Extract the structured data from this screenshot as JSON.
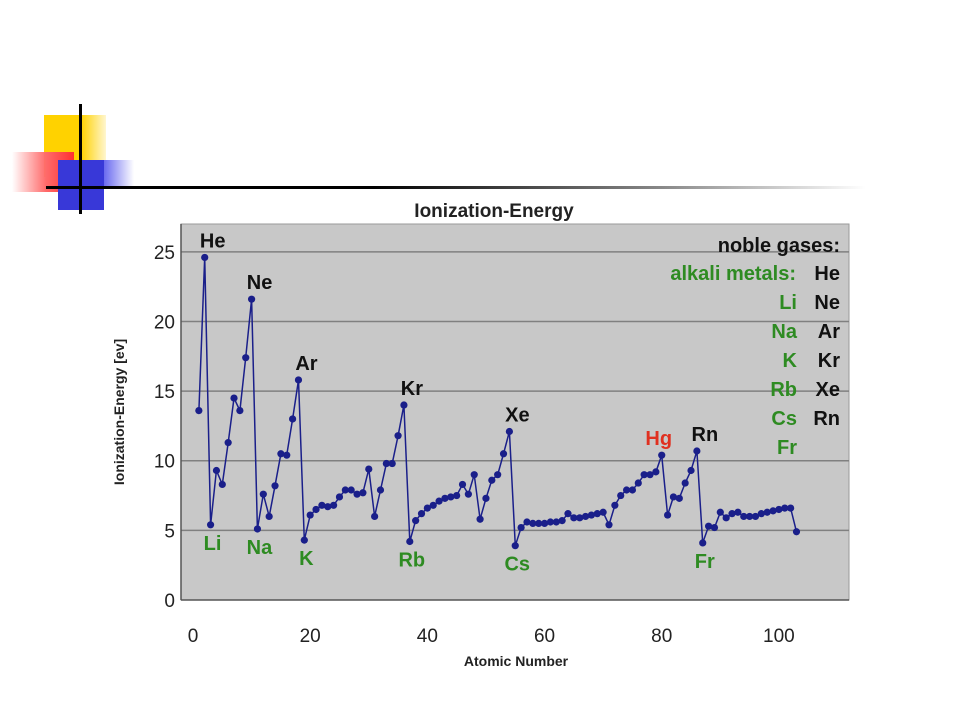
{
  "chart_data": {
    "type": "line",
    "title": "Ionization-Energy",
    "xlabel": "Atomic Number",
    "ylabel": "Ionization-Energy [ev]",
    "xlim": [
      0,
      110
    ],
    "ylim": [
      0,
      27
    ],
    "xticks": [
      0,
      20,
      40,
      60,
      80,
      100
    ],
    "yticks": [
      0,
      5,
      10,
      15,
      20,
      25
    ],
    "grid": "horizontal",
    "colors": {
      "plot_bg": "#c8c8c8",
      "line": "#1a1f8a",
      "noble": "#111111",
      "alkali": "#2e8b22",
      "highlight": "#e03020",
      "grid": "#808080"
    },
    "series": [
      {
        "x": [
          1,
          2,
          3,
          4,
          5,
          6,
          7,
          8,
          9,
          10,
          11,
          12,
          13,
          14,
          15,
          16,
          17,
          18,
          19,
          20,
          21,
          22,
          23,
          24,
          25,
          26,
          27,
          28,
          29,
          30,
          31,
          32,
          33,
          34,
          35,
          36,
          37,
          38,
          39,
          40,
          41,
          42,
          43,
          44,
          45,
          46,
          47,
          48,
          49,
          50,
          51,
          52,
          53,
          54,
          55,
          56,
          57,
          58,
          59,
          60,
          61,
          62,
          63,
          64,
          65,
          66,
          67,
          68,
          69,
          70,
          71,
          72,
          73,
          74,
          75,
          76,
          77,
          78,
          79,
          80,
          81,
          82,
          83,
          84,
          85,
          86,
          87,
          88,
          89,
          90,
          91,
          92,
          93,
          94,
          95,
          96,
          97,
          98,
          99,
          100,
          101,
          102,
          103
        ],
        "values": [
          13.6,
          24.6,
          5.4,
          9.3,
          8.3,
          11.3,
          14.5,
          13.6,
          17.4,
          21.6,
          5.1,
          7.6,
          6.0,
          8.2,
          10.5,
          10.4,
          13.0,
          15.8,
          4.3,
          6.1,
          6.5,
          6.8,
          6.7,
          6.8,
          7.4,
          7.9,
          7.9,
          7.6,
          7.7,
          9.4,
          6.0,
          7.9,
          9.8,
          9.8,
          11.8,
          14.0,
          4.2,
          5.7,
          6.2,
          6.6,
          6.8,
          7.1,
          7.3,
          7.4,
          7.5,
          8.3,
          7.6,
          9.0,
          5.8,
          7.3,
          8.6,
          9.0,
          10.5,
          12.1,
          3.9,
          5.2,
          5.6,
          5.5,
          5.5,
          5.5,
          5.6,
          5.6,
          5.7,
          6.2,
          5.9,
          5.9,
          6.0,
          6.1,
          6.2,
          6.3,
          5.4,
          6.8,
          7.5,
          7.9,
          7.9,
          8.4,
          9.0,
          9.0,
          9.2,
          10.4,
          6.1,
          7.4,
          7.3,
          8.4,
          9.3,
          10.7,
          4.1,
          5.3,
          5.2,
          6.3,
          5.9,
          6.2,
          6.3,
          6.0,
          6.0,
          6.0,
          6.2,
          6.3,
          6.4,
          6.5,
          6.6,
          6.6,
          4.9
        ]
      }
    ],
    "annotations": [
      {
        "text": "He",
        "x": 2,
        "y": 24.6,
        "group": "noble"
      },
      {
        "text": "Ne",
        "x": 10,
        "y": 21.6,
        "group": "noble"
      },
      {
        "text": "Ar",
        "x": 18,
        "y": 15.8,
        "group": "noble"
      },
      {
        "text": "Kr",
        "x": 36,
        "y": 14.0,
        "group": "noble"
      },
      {
        "text": "Xe",
        "x": 54,
        "y": 12.1,
        "group": "noble"
      },
      {
        "text": "Rn",
        "x": 86,
        "y": 10.7,
        "group": "noble"
      },
      {
        "text": "Hg",
        "x": 80,
        "y": 10.4,
        "group": "highlight"
      },
      {
        "text": "Li",
        "x": 3,
        "y": 5.4,
        "group": "alkali"
      },
      {
        "text": "Na",
        "x": 11,
        "y": 5.1,
        "group": "alkali"
      },
      {
        "text": "K",
        "x": 19,
        "y": 4.3,
        "group": "alkali"
      },
      {
        "text": "Rb",
        "x": 37,
        "y": 4.2,
        "group": "alkali"
      },
      {
        "text": "Cs",
        "x": 55,
        "y": 3.9,
        "group": "alkali"
      },
      {
        "text": "Fr",
        "x": 87,
        "y": 4.1,
        "group": "alkali"
      }
    ],
    "legend": {
      "placement": "top-right",
      "noble_title": "noble gases:",
      "alkali_title": "alkali metals:",
      "noble": [
        "He",
        "Ne",
        "Ar",
        "Kr",
        "Xe",
        "Rn"
      ],
      "alkali": [
        "Li",
        "Na",
        "K",
        "Rb",
        "Cs",
        "Fr"
      ]
    }
  }
}
